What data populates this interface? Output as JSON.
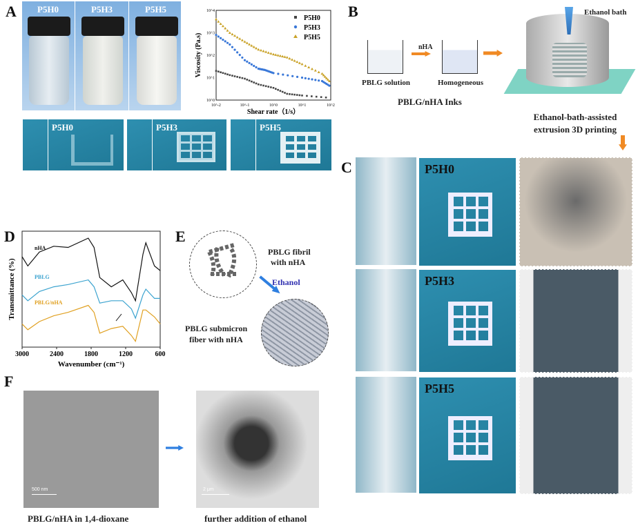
{
  "panels": {
    "A": "A",
    "B": "B",
    "C": "C",
    "D": "D",
    "E": "E",
    "F": "F"
  },
  "panelA": {
    "vial_labels": [
      "P5H0",
      "P5H3",
      "P5H5"
    ],
    "print_labels": [
      "P5H0",
      "P5H3",
      "P5H5"
    ]
  },
  "panelB": {
    "beaker1": "PBLG solution",
    "arrow_label": "nHA",
    "beaker2": "Homogeneous",
    "inks": "PBLG/nHA Inks",
    "bath": "Ethanol bath",
    "printing_line1": "Ethanol-bath-assisted",
    "printing_line2": "extrusion 3D printing"
  },
  "panelC": {
    "row_labels": [
      "P5H0",
      "P5H3",
      "P5H5"
    ]
  },
  "panelE": {
    "fibril_line1": "PBLG fibril",
    "fibril_line2": "with nHA",
    "arrow_label": "Ethanol",
    "fiber_line1": "PBLG submicron",
    "fiber_line2": "fiber with nHA"
  },
  "panelF": {
    "left_caption": "PBLG/nHA in 1,4-dioxane",
    "right_caption": "further addition of ethanol",
    "left_scale": "500 nm",
    "right_scale": "2 μm"
  },
  "chart_data": [
    {
      "type": "scatter",
      "xlabel": "Shear rate（1/s）",
      "ylabel": "Viscosity (Pa.s)",
      "xscale": "log",
      "yscale": "log",
      "xlim": [
        0.01,
        100
      ],
      "ylim": [
        1,
        10000
      ],
      "xticks": [
        "10^-2",
        "10^-1",
        "10^0",
        "10^1",
        "10^2"
      ],
      "yticks": [
        "10^0",
        "10^1",
        "10^2",
        "10^3",
        "10^4"
      ],
      "legend": "top-right",
      "series": [
        {
          "name": "P5H0",
          "marker": "square",
          "color": "#444444",
          "x": [
            0.01,
            0.03,
            0.1,
            0.3,
            1,
            3,
            10,
            100
          ],
          "y": [
            20,
            13,
            9,
            5,
            3.5,
            1.9,
            1.6,
            1.25
          ]
        },
        {
          "name": "P5H3",
          "marker": "circle",
          "color": "#3a78d8",
          "x": [
            0.01,
            0.03,
            0.1,
            0.3,
            0.5,
            1,
            10,
            50,
            100
          ],
          "y": [
            800,
            300,
            60,
            25,
            22,
            16,
            10,
            7,
            4
          ]
        },
        {
          "name": "P5H5",
          "marker": "triangle",
          "color": "#c9a227",
          "x": [
            0.01,
            0.03,
            0.1,
            0.3,
            1,
            3,
            10,
            50,
            100
          ],
          "y": [
            4000,
            1000,
            400,
            180,
            110,
            80,
            40,
            15,
            6
          ]
        }
      ]
    },
    {
      "type": "line",
      "xlabel": "Wavenumber (cm⁻¹)",
      "ylabel": "Transmittance (%)",
      "xlim": [
        3000,
        600
      ],
      "xticks": [
        "3000",
        "2400",
        "1800",
        "1200",
        "600"
      ],
      "series": [
        {
          "name": "nHA",
          "color": "#111111",
          "x": [
            3000,
            2900,
            2700,
            2450,
            2200,
            1850,
            1750,
            1650,
            1450,
            1250,
            1100,
            1030,
            900,
            850,
            700,
            600
          ],
          "y": [
            0.78,
            0.7,
            0.82,
            0.87,
            0.86,
            0.94,
            0.86,
            0.6,
            0.52,
            0.58,
            0.47,
            0.4,
            0.8,
            0.9,
            0.7,
            0.66
          ]
        },
        {
          "name": "PBLG",
          "color": "#3ba3cf",
          "x": [
            3000,
            2900,
            2700,
            2450,
            2200,
            1850,
            1750,
            1650,
            1450,
            1250,
            1100,
            1030,
            900,
            850,
            700,
            600
          ],
          "y": [
            0.45,
            0.4,
            0.48,
            0.52,
            0.54,
            0.58,
            0.52,
            0.38,
            0.4,
            0.4,
            0.33,
            0.25,
            0.45,
            0.5,
            0.42,
            0.42
          ]
        },
        {
          "name": "PBLG/nHA",
          "color": "#e0a020",
          "x": [
            3000,
            2900,
            2700,
            2450,
            2200,
            1850,
            1750,
            1650,
            1450,
            1250,
            1100,
            1030,
            900,
            850,
            700,
            600
          ],
          "y": [
            0.2,
            0.15,
            0.22,
            0.27,
            0.3,
            0.36,
            0.3,
            0.12,
            0.16,
            0.18,
            0.1,
            0.05,
            0.32,
            0.32,
            0.26,
            0.2
          ]
        }
      ]
    }
  ]
}
